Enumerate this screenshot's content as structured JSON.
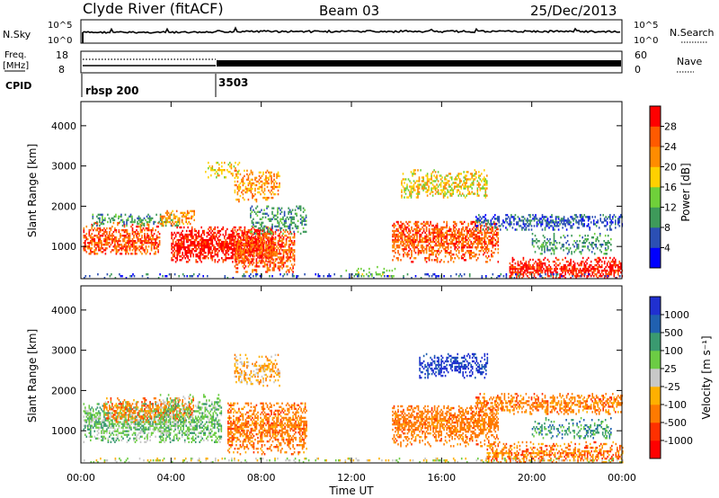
{
  "header": {
    "station": "Clyde River (fitACF)",
    "beam": "Beam 03",
    "date": "25/Dec/2013"
  },
  "aux_panels": {
    "nsky_label": "N.Sky",
    "nsearch_label": "N.Search",
    "nsky_tick_top": "10^5",
    "nsky_tick_bottom": "10^0",
    "freq_label_1": "Freq.",
    "freq_label_2": "[MHz]",
    "freq_ticks": [
      "18",
      "8"
    ],
    "nave_label": "Nave",
    "nave_ticks": [
      "60",
      "0"
    ],
    "cpid_label": "CPID",
    "cpid_entries": [
      {
        "name": "rbsp 200",
        "start_hour": 0
      },
      {
        "name": "3503",
        "start_hour": 6
      }
    ]
  },
  "chart_data": [
    {
      "type": "heatmap",
      "name": "power",
      "ylabel": "Slant Range [km]",
      "ylim": [
        200,
        4600
      ],
      "yticks": [
        1000,
        2000,
        3000,
        4000
      ],
      "colorbar_label": "Power [dB]",
      "colorbar_ticks": [
        "4",
        "8",
        "12",
        "16",
        "20",
        "24",
        "28"
      ],
      "colors": [
        "#0000ff",
        "#2b4fb4",
        "#3e9a5a",
        "#6fd03a",
        "#ffd000",
        "#ff8c00",
        "#ff5a00",
        "#ff0000"
      ]
    },
    {
      "type": "heatmap",
      "name": "velocity",
      "ylabel": "Slant Range [km]",
      "ylim": [
        200,
        4600
      ],
      "yticks": [
        1000,
        2000,
        3000,
        4000
      ],
      "colorbar_label": "Velocity [m s⁻¹]",
      "colorbar_ticks": [
        "1000",
        "500",
        "100",
        "25",
        "-25",
        "-100",
        "-500",
        "-1000"
      ],
      "colors": [
        "#2030d0",
        "#2060b0",
        "#3a9a70",
        "#6ccc44",
        "#c8c8c8",
        "#ffb000",
        "#ff7a00",
        "#ff3000",
        "#ff0000"
      ],
      "xlabel": "Time UT",
      "xticks": [
        "00:00",
        "04:00",
        "08:00",
        "12:00",
        "16:00",
        "20:00",
        "00:00"
      ],
      "xlim_hours": [
        0,
        24
      ]
    }
  ]
}
